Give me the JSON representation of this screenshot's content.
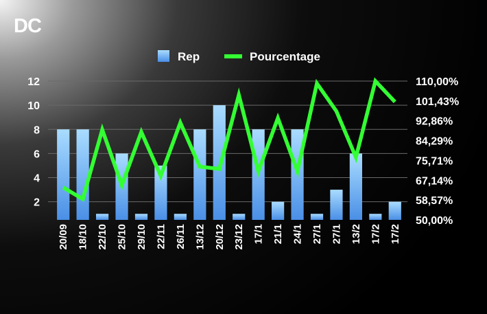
{
  "header": {
    "title": "DC"
  },
  "colors": {
    "bar_top": "#a9dcff",
    "bar_bottom": "#4a8fe6",
    "line": "#33ff33",
    "grid": "#6a6a6a"
  },
  "chart_data": {
    "type": "bar",
    "categories": [
      "20/09",
      "18/10",
      "22/10",
      "25/10",
      "29/10",
      "22/11",
      "26/11",
      "13/12",
      "20/12",
      "23/12",
      "17/1",
      "21/1",
      "24/1",
      "27/1",
      "27/1",
      "13/2",
      "17/2",
      "17/2"
    ],
    "series": [
      {
        "name": "Rep",
        "type": "bar",
        "axis": "left",
        "values": [
          8,
          8,
          1,
          6,
          1,
          5,
          1,
          8,
          10,
          1,
          8,
          2,
          8,
          1,
          3,
          6,
          1,
          2
        ]
      },
      {
        "name": "Pourcentage",
        "type": "line",
        "axis": "right",
        "values": [
          64,
          59,
          89,
          65,
          88,
          69,
          92,
          73,
          72,
          104,
          71,
          94,
          71,
          109,
          97,
          77,
          110,
          101
        ]
      }
    ],
    "y_left": {
      "ticks": [
        2,
        4,
        6,
        8,
        10,
        12
      ],
      "range": [
        0.5,
        12
      ]
    },
    "y_right": {
      "ticks": [
        "50,00%",
        "58,57%",
        "67,14%",
        "75,71%",
        "84,29%",
        "92,86%",
        "101,43%",
        "110,00%"
      ],
      "range": [
        50,
        110
      ]
    },
    "legend": [
      "Rep",
      "Pourcentage"
    ],
    "legend_position": "top-center",
    "grid": true
  }
}
